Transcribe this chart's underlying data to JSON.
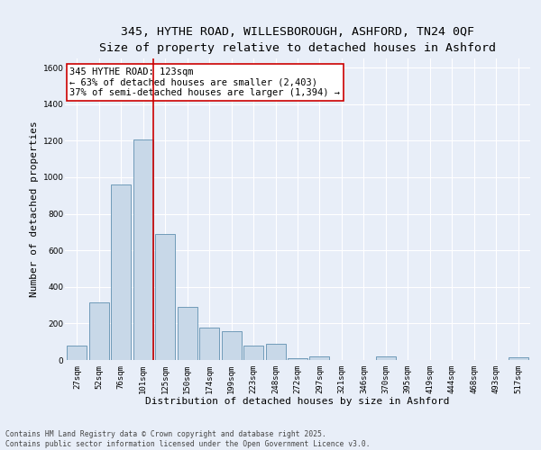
{
  "title_line1": "345, HYTHE ROAD, WILLESBOROUGH, ASHFORD, TN24 0QF",
  "title_line2": "Size of property relative to detached houses in Ashford",
  "xlabel": "Distribution of detached houses by size in Ashford",
  "ylabel": "Number of detached properties",
  "categories": [
    "27sqm",
    "52sqm",
    "76sqm",
    "101sqm",
    "125sqm",
    "150sqm",
    "174sqm",
    "199sqm",
    "223sqm",
    "248sqm",
    "272sqm",
    "297sqm",
    "321sqm",
    "346sqm",
    "370sqm",
    "395sqm",
    "419sqm",
    "444sqm",
    "468sqm",
    "493sqm",
    "517sqm"
  ],
  "values": [
    80,
    315,
    960,
    1205,
    690,
    290,
    175,
    160,
    80,
    90,
    10,
    20,
    0,
    0,
    18,
    0,
    0,
    0,
    0,
    0,
    15
  ],
  "bar_color": "#c8d8e8",
  "bar_edge_color": "#6090b0",
  "vline_color": "#cc0000",
  "annotation_text": "345 HYTHE ROAD: 123sqm\n← 63% of detached houses are smaller (2,403)\n37% of semi-detached houses are larger (1,394) →",
  "annotation_box_color": "#ffffff",
  "annotation_box_edge_color": "#cc0000",
  "ylim": [
    0,
    1650
  ],
  "yticks": [
    0,
    200,
    400,
    600,
    800,
    1000,
    1200,
    1400,
    1600
  ],
  "background_color": "#e8eef8",
  "grid_color": "#ffffff",
  "footnote": "Contains HM Land Registry data © Crown copyright and database right 2025.\nContains public sector information licensed under the Open Government Licence v3.0.",
  "title_fontsize": 9.5,
  "subtitle_fontsize": 8.5,
  "axis_label_fontsize": 8,
  "tick_fontsize": 6.5,
  "annotation_fontsize": 7.5,
  "footnote_fontsize": 5.8
}
